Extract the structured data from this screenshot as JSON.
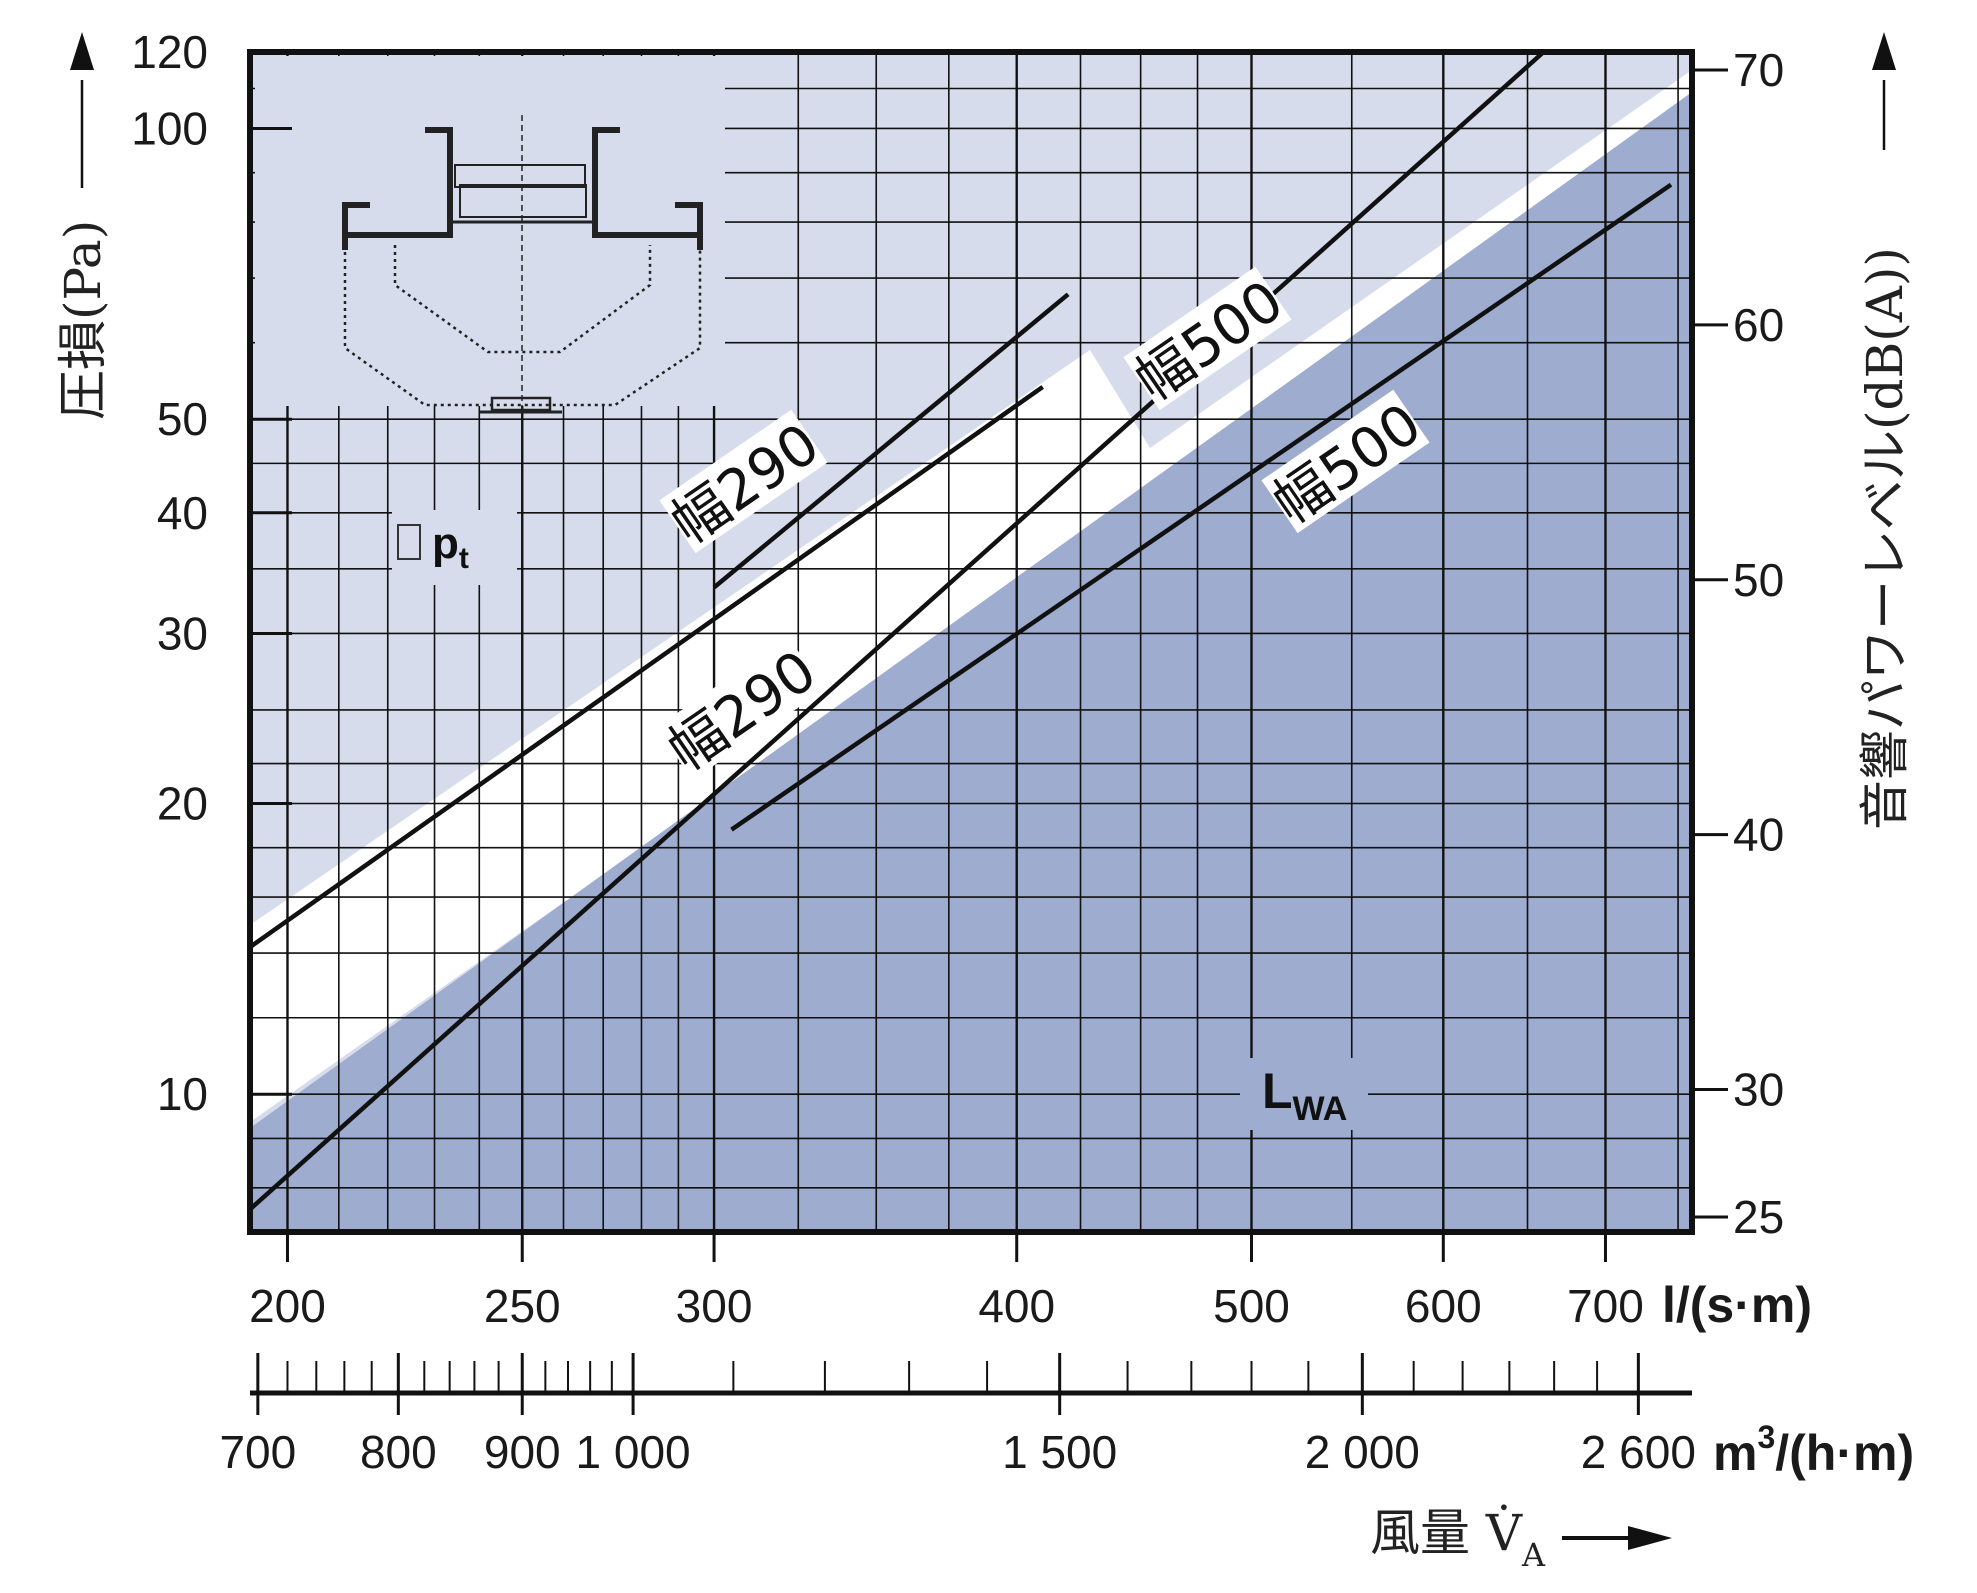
{
  "chart_data": {
    "type": "line",
    "title": "",
    "colors": {
      "plot_bg": "#d7dcec",
      "dark_region": "#9daccf",
      "grid": "#111111",
      "band": "#ffffff",
      "curve": "#111111"
    },
    "x_axis": {
      "scale": "log",
      "unit_label": "l/(s·m)",
      "xlim": [
        193,
        760
      ],
      "ticks": [
        200,
        250,
        300,
        400,
        500,
        600,
        700
      ],
      "tick_labels": [
        "200",
        "250",
        "300",
        "400",
        "500",
        "600",
        "700"
      ]
    },
    "x2_axis": {
      "unit_label_main": "m",
      "unit_label_sup": "3",
      "unit_label_rest": "/(h·m)",
      "title": "風量 V̇",
      "title_sub": "A",
      "ticks": [
        700,
        800,
        900,
        1000,
        1500,
        2000,
        2600
      ],
      "tick_labels": [
        "700",
        "800",
        "900",
        "1 000",
        "1 500",
        "2 000",
        "2 600"
      ]
    },
    "y_left": {
      "scale": "log",
      "label": "圧損(Pa)",
      "ylim": [
        7.2,
        120
      ],
      "ticks": [
        10,
        20,
        30,
        40,
        50,
        100,
        120
      ],
      "tick_labels": [
        "10",
        "20",
        "30",
        "40",
        "50",
        "100",
        "120"
      ]
    },
    "y_right": {
      "scale": "linear",
      "label": "音響パワーレベル(dB(A))",
      "ylim": [
        25,
        70
      ],
      "ticks": [
        25,
        30,
        40,
        50,
        60,
        70
      ],
      "tick_labels": [
        "25",
        "30",
        "40",
        "50",
        "60",
        "70"
      ]
    },
    "series": [
      {
        "name": "幅290",
        "axis": "left",
        "x": [
          193,
          410
        ],
        "y": [
          14.2,
          54
        ]
      },
      {
        "name": "幅500",
        "axis": "left",
        "x": [
          193,
          660
        ],
        "y": [
          7.6,
          120
        ]
      },
      {
        "name": "幅290",
        "axis": "right",
        "x": [
          300,
          420
        ],
        "y": [
          49.7,
          61.2
        ]
      },
      {
        "name": "幅500",
        "axis": "right",
        "x": [
          305,
          745
        ],
        "y": [
          40.2,
          65.5
        ]
      }
    ],
    "band_labels": [
      "幅290",
      "幅500",
      "幅290",
      "幅500"
    ],
    "delta_p_label": "p",
    "delta_p_sub": "t",
    "lwa_label": "L",
    "lwa_sub": "WA"
  }
}
